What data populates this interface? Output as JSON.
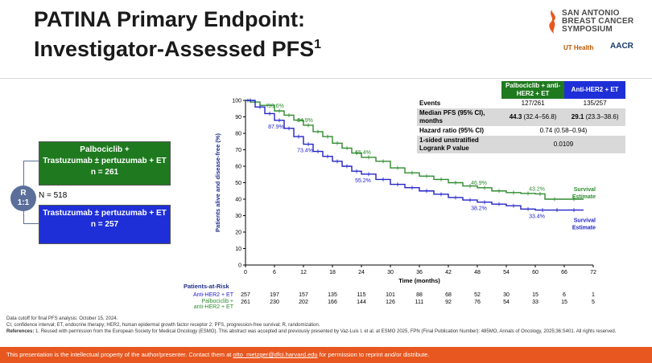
{
  "title": {
    "line1": "PATINA Primary Endpoint:",
    "line2": "Investigator-Assessed PFS",
    "sup": "1"
  },
  "logo": {
    "l1": "SAN ANTONIO",
    "l2": "BREAST CANCER",
    "l3": "SYMPOSIUM",
    "uthealth": "UT Health",
    "aacr": "AACR"
  },
  "design": {
    "arm1": {
      "l1": "Palbociclib +",
      "l2": "Trastuzumab ± pertuzumab + ET",
      "l3": "n = 261"
    },
    "arm2": {
      "l1": "Trastuzumab ± pertuzumab + ET",
      "l2": "n = 257"
    },
    "r_l1": "R",
    "r_l2": "1:1",
    "n": "N = 518"
  },
  "table": {
    "col1": "Palbociclib + anti-HER2 + ET",
    "col2": "Anti-HER2 + ET",
    "rows": [
      {
        "label": "Events",
        "v1": "127/261",
        "v2": "135/257"
      },
      {
        "label": "Median PFS (95% CI), months",
        "v1b": "44.3",
        "v1": "(32.4–56.8)",
        "v2b": "29.1",
        "v2": "(23.3–38.6)"
      },
      {
        "label": "Hazard ratio (95% CI)",
        "v": "0.74 (0.58–0.94)"
      },
      {
        "label": "1-sided unstratified Logrank P value",
        "v": "0.0109"
      }
    ]
  },
  "chart_data": {
    "type": "line",
    "xlabel": "Time (months)",
    "ylabel": "Patients alive and disease-free (%)",
    "xlim": [
      0,
      72
    ],
    "ylim": [
      0,
      100
    ],
    "xticks": [
      0,
      6,
      12,
      18,
      24,
      30,
      36,
      42,
      48,
      54,
      60,
      66,
      72
    ],
    "yticks": [
      0,
      10,
      20,
      30,
      40,
      50,
      60,
      70,
      80,
      90,
      100
    ],
    "series": [
      {
        "name": "Palbociclib + anti-HER2 + ET",
        "color": "#2e8b2e",
        "x": [
          0,
          1,
          3,
          6,
          8,
          10,
          12,
          14,
          16,
          18,
          20,
          22,
          24,
          27,
          30,
          33,
          36,
          39,
          42,
          45,
          48,
          51,
          54,
          57,
          60,
          62,
          66,
          70
        ],
        "y": [
          100,
          99,
          97,
          93.6,
          91,
          88,
          84.9,
          81,
          78,
          74,
          71,
          68,
          65.4,
          63,
          59,
          56,
          54,
          52,
          50,
          48,
          46.9,
          45,
          44,
          43.5,
          43.2,
          40,
          40,
          40
        ]
      },
      {
        "name": "Anti-HER2 + ET",
        "color": "#2323c8",
        "x": [
          0,
          2,
          4,
          6,
          8,
          10,
          12,
          14,
          16,
          18,
          20,
          22,
          24,
          27,
          30,
          33,
          36,
          39,
          42,
          45,
          48,
          51,
          54,
          57,
          60,
          63,
          66,
          70
        ],
        "y": [
          100,
          96,
          92,
          87.9,
          83,
          78,
          73.4,
          69,
          66,
          63,
          60,
          57,
          55.2,
          52,
          49,
          47,
          45,
          43,
          41,
          39.5,
          38.2,
          37,
          36,
          34,
          33.4,
          33.4,
          33.4,
          33.4
        ]
      }
    ],
    "annotations_green": [
      {
        "x": 6,
        "y": 93.6,
        "text": "93.6%"
      },
      {
        "x": 12,
        "y": 84.9,
        "text": "84.9%"
      },
      {
        "x": 24,
        "y": 65.4,
        "text": "65.4%"
      },
      {
        "x": 48,
        "y": 46.9,
        "text": "46.9%"
      },
      {
        "x": 60,
        "y": 43.2,
        "text": "43.2%"
      }
    ],
    "annotations_blue": [
      {
        "x": 6,
        "y": 87.9,
        "text": "87.9%"
      },
      {
        "x": 12,
        "y": 73.4,
        "text": "73.4%"
      },
      {
        "x": 24,
        "y": 55.2,
        "text": "55.2%"
      },
      {
        "x": 48,
        "y": 38.2,
        "text": "38.2%"
      },
      {
        "x": 60,
        "y": 33.4,
        "text": "33.4%"
      }
    ],
    "end_labels": {
      "green": "Survival\nEstimate",
      "blue": "Survival\nEstimate"
    },
    "risk": {
      "title": "Patients-at-Risk",
      "rows": [
        {
          "label": "Anti-HER2 + ET",
          "color": "#2323c8",
          "values": [
            257,
            197,
            157,
            135,
            115,
            101,
            88,
            68,
            52,
            30,
            15,
            6,
            1
          ]
        },
        {
          "label": "Palbociclib + anti-HER2 + ET",
          "color": "#2e8b2e",
          "values": [
            261,
            230,
            202,
            166,
            144,
            126,
            111,
            92,
            76,
            54,
            33,
            15,
            5
          ]
        }
      ]
    }
  },
  "footnotes": {
    "l1": "Data cutoff for final PFS analysis: October 15, 2024.",
    "l2": "CI, confidence interval; ET, endocrine therapy; HER2, human epidermal growth factor receptor 2; PFS, progression-free survival; R, randomization.",
    "l3b": "References:",
    "l3": " 1. Reused with permission from the European Society for Medical Oncology (ESMO). This abstract was accepted and previously presented by Vaz-Luis I, et al. at ESMO 2025, FPN (Final Publication Number): 485MO, Annals of Oncology, 2025;36:S401. All rights reserved."
  },
  "banner": {
    "pre": "This presentation is the intellectual property of the author/presenter. Contact them at ",
    "email": "otto_metzger@dfci.harvard.edu",
    "post": " for permission to reprint and/or distribute."
  }
}
